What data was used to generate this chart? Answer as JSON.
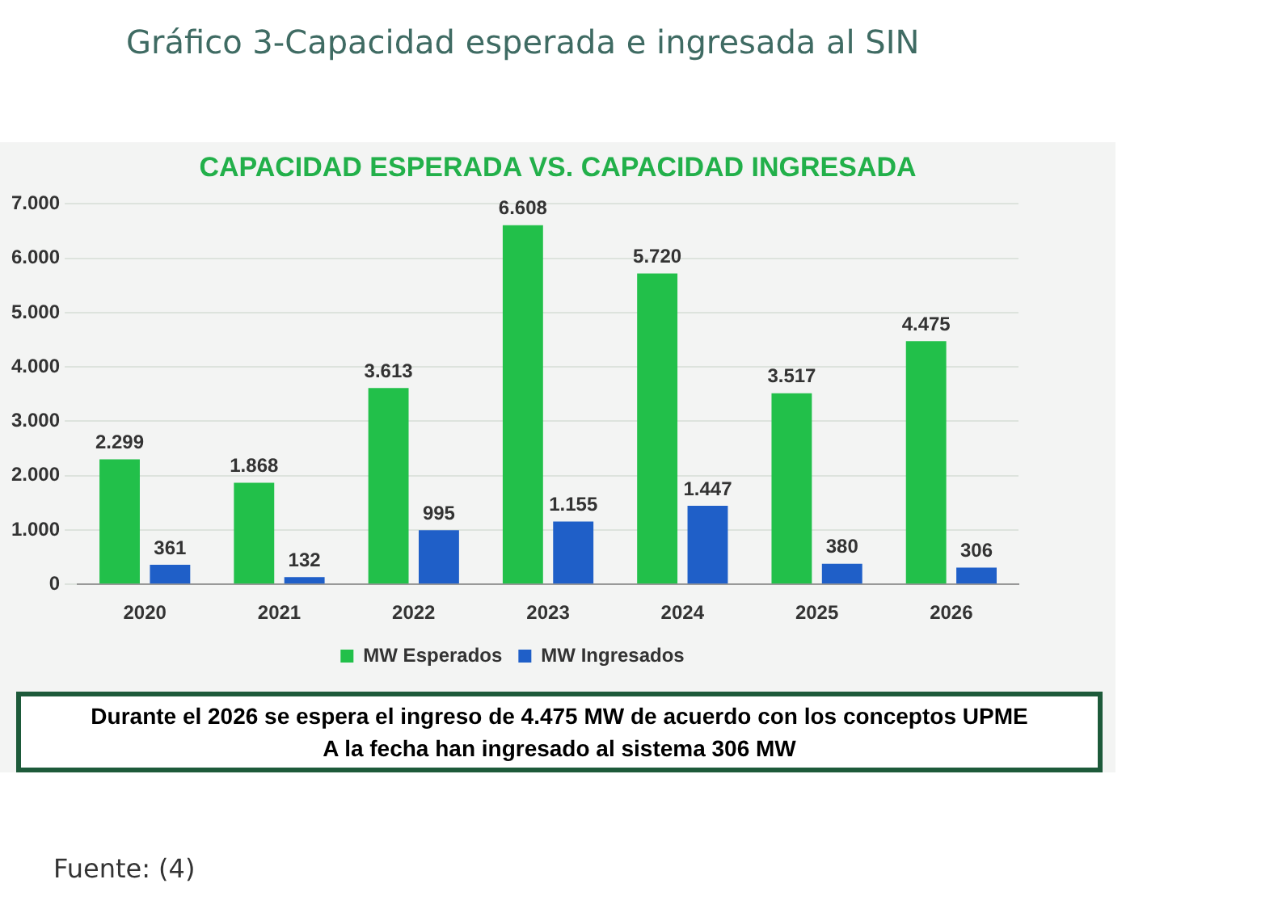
{
  "chart_data": {
    "type": "bar",
    "title": "Gráfico 3-Capacidad esperada e ingresada al SIN",
    "subtitle": "CAPACIDAD ESPERADA VS. CAPACIDAD INGRESADA",
    "categories": [
      "2020",
      "2021",
      "2022",
      "2023",
      "2024",
      "2025",
      "2026"
    ],
    "series": [
      {
        "name": "MW Esperados",
        "color": "#22c04a",
        "values": [
          2299,
          1868,
          3613,
          6608,
          5720,
          3517,
          4475
        ],
        "value_labels": [
          "2.299",
          "1.868",
          "3.613",
          "6.608",
          "5.720",
          "3.517",
          "4.475"
        ]
      },
      {
        "name": "MW Ingresados",
        "color": "#1f5fc8",
        "values": [
          361,
          132,
          995,
          1155,
          1447,
          380,
          306
        ],
        "value_labels": [
          "361",
          "132",
          "995",
          "1.155",
          "1.447",
          "380",
          "306"
        ]
      }
    ],
    "ylim": [
      0,
      7000
    ],
    "yticks": [
      {
        "value": 0,
        "label": "0"
      },
      {
        "value": 1000,
        "label": "1.000"
      },
      {
        "value": 2000,
        "label": "2.000"
      },
      {
        "value": 3000,
        "label": "3.000"
      },
      {
        "value": 4000,
        "label": "4.000"
      },
      {
        "value": 5000,
        "label": "5.000"
      },
      {
        "value": 6000,
        "label": "6.000"
      },
      {
        "value": 7000,
        "label": "7.000"
      }
    ],
    "grid": "y",
    "legend": "bottom",
    "annotations": [
      "Durante el 2026 se espera el ingreso de 4.475 MW de acuerdo con los conceptos UPME",
      "A la fecha han ingresado al sistema 306 MW",
      "Fuente: (4)"
    ]
  }
}
